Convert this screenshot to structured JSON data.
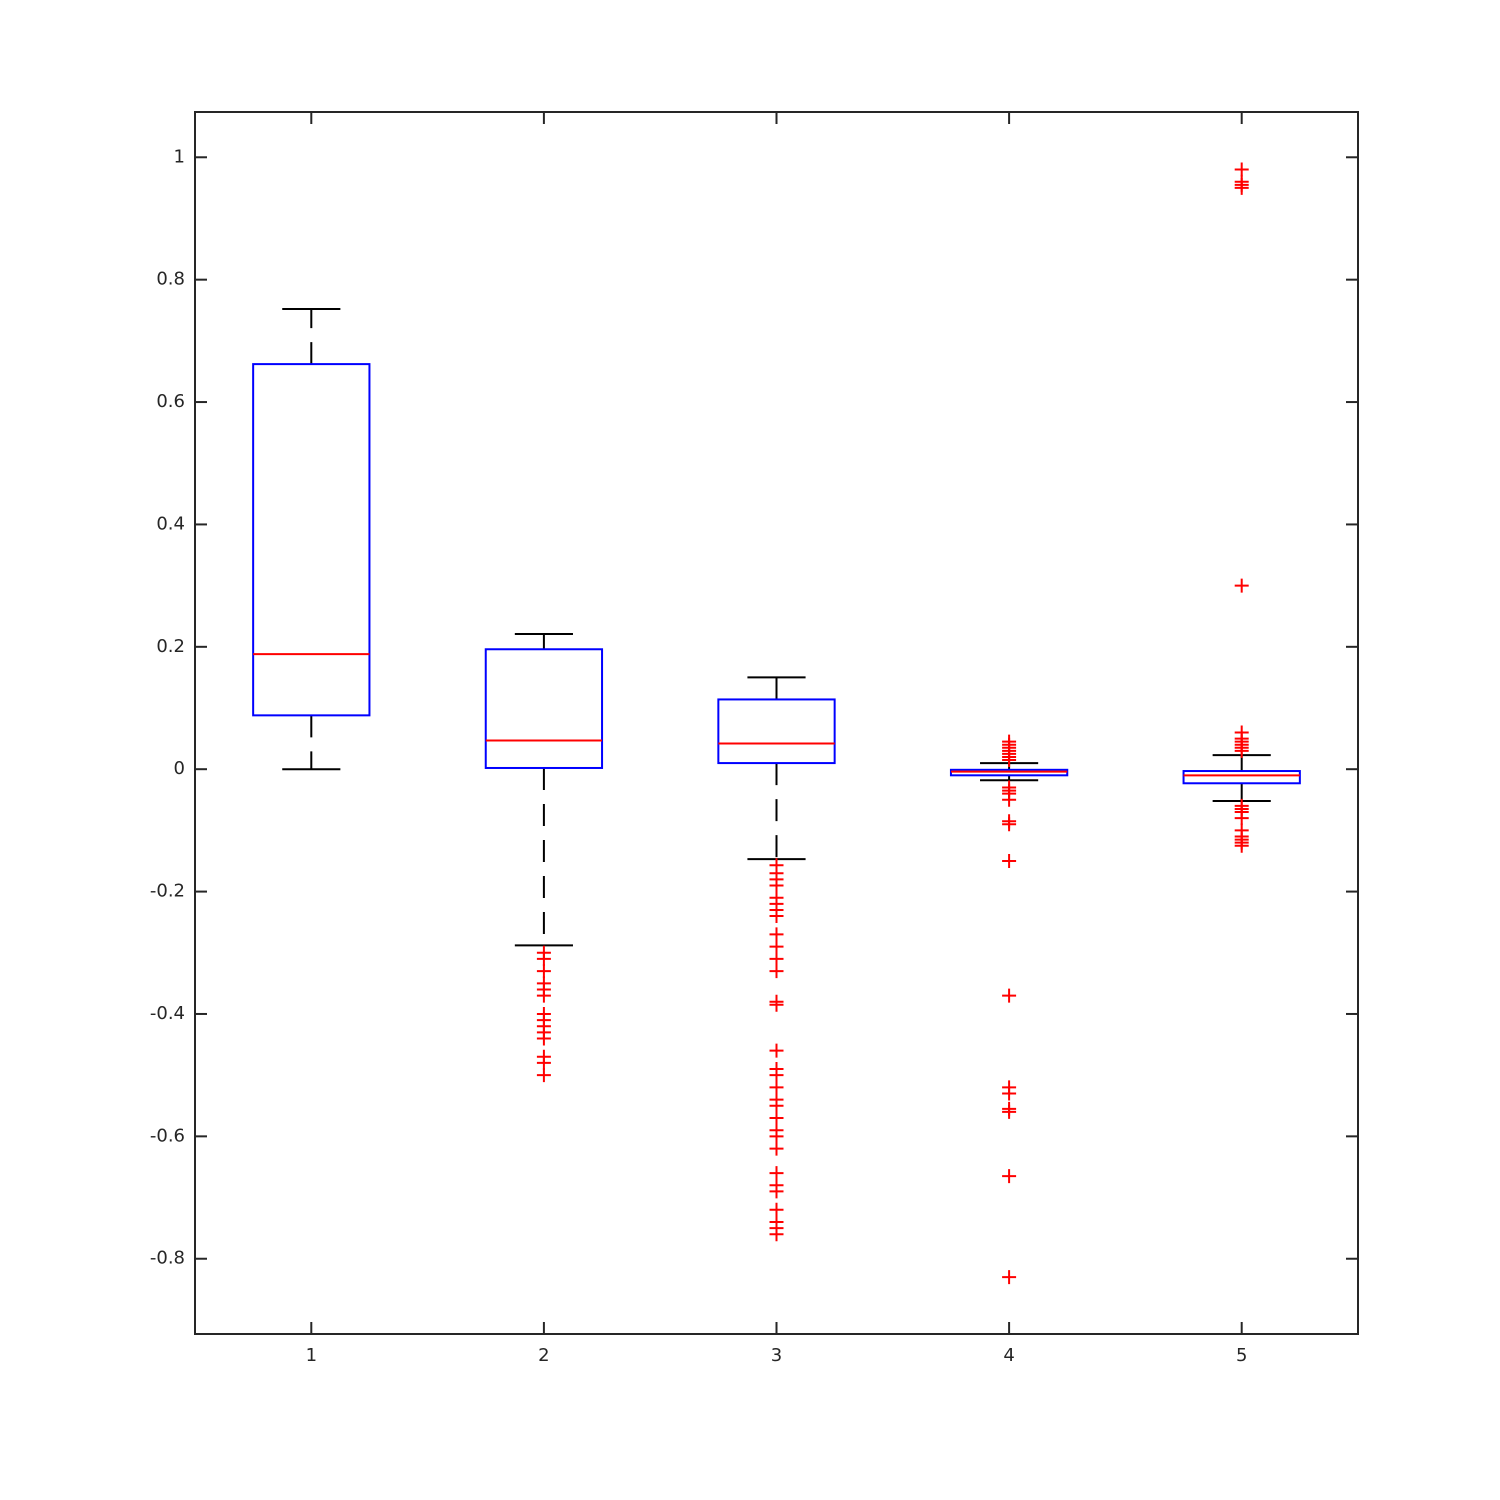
{
  "chart_data": {
    "type": "box",
    "categories": [
      "1",
      "2",
      "3",
      "4",
      "5"
    ],
    "xlim": [
      0.5,
      5.5
    ],
    "ylim": [
      -0.923,
      1.074
    ],
    "yticks": [
      -0.8,
      -0.6,
      -0.4,
      -0.2,
      0,
      0.2,
      0.4,
      0.6,
      0.8,
      1
    ],
    "box_color": "#0000ff",
    "median_color": "#ff0000",
    "whisker_color": "#000000",
    "outlier_color": "#ff0000",
    "boxes": [
      {
        "whisker_low": 0,
        "q1": 0.088,
        "median": 0.188,
        "q3": 0.662,
        "whisker_high": 0.752,
        "outliers": []
      },
      {
        "whisker_low": -0.288,
        "q1": 0.002,
        "median": 0.047,
        "q3": 0.196,
        "whisker_high": 0.221,
        "outliers": [
          -0.3,
          -0.31,
          -0.33,
          -0.35,
          -0.36,
          -0.37,
          -0.4,
          -0.41,
          -0.42,
          -0.43,
          -0.44,
          -0.47,
          -0.48,
          -0.5
        ]
      },
      {
        "whisker_low": -0.147,
        "q1": 0.01,
        "median": 0.042,
        "q3": 0.114,
        "whisker_high": 0.15,
        "outliers": [
          -0.157,
          -0.17,
          -0.18,
          -0.19,
          -0.21,
          -0.22,
          -0.23,
          -0.24,
          -0.27,
          -0.29,
          -0.31,
          -0.33,
          -0.38,
          -0.385,
          -0.46,
          -0.49,
          -0.5,
          -0.52,
          -0.54,
          -0.55,
          -0.57,
          -0.59,
          -0.6,
          -0.62,
          -0.66,
          -0.68,
          -0.69,
          -0.72,
          -0.74,
          -0.75,
          -0.76
        ]
      },
      {
        "whisker_low": -0.018,
        "q1": -0.01,
        "median": -0.004,
        "q3": -0.001,
        "whisker_high": 0.01,
        "outliers": [
          0.045,
          0.04,
          0.035,
          0.03,
          0.025,
          0.02,
          0.015,
          -0.03,
          -0.035,
          -0.04,
          -0.05,
          -0.085,
          -0.09,
          -0.15,
          -0.37,
          -0.52,
          -0.53,
          -0.555,
          -0.56,
          -0.665,
          -0.83
        ]
      },
      {
        "whisker_low": -0.052,
        "q1": -0.023,
        "median": -0.01,
        "q3": -0.003,
        "whisker_high": 0.023,
        "outliers": [
          0.98,
          0.96,
          0.955,
          0.95,
          0.3,
          0.06,
          0.05,
          0.045,
          0.04,
          0.035,
          0.03,
          -0.06,
          -0.065,
          -0.07,
          -0.08,
          -0.1,
          -0.11,
          -0.115,
          -0.12,
          -0.125
        ]
      }
    ]
  }
}
